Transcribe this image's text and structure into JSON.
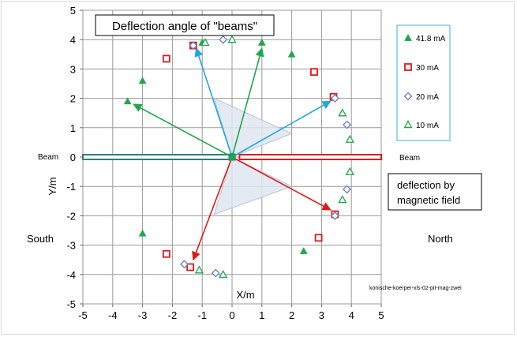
{
  "chart_data": {
    "type": "scatter",
    "title": "Deflection angle of \"beams\"",
    "xlabel": "X/m",
    "ylabel": "Y/m",
    "xlim": [
      -5,
      5
    ],
    "ylim": [
      -5,
      5
    ],
    "x_ticks": [
      -5,
      -4,
      -3,
      -2,
      -1,
      0,
      1,
      2,
      3,
      4,
      5
    ],
    "y_ticks": [
      -5,
      -4,
      -3,
      -2,
      -1,
      0,
      1,
      2,
      3,
      4,
      5
    ],
    "grid": true,
    "legend_position": "right",
    "colors": {
      "green": "#1ea84a",
      "red": "#e01a1a",
      "blue_marker": "#6b79c8",
      "cyan": "#1fa7e0",
      "beam_teal": "#2e7d7d",
      "cone_fill": "#dfe6f0",
      "plot_border": "#c8c84a",
      "legend_border": "#3ab0d6",
      "grid": "#9a9a9a"
    },
    "series": [
      {
        "name": "41.8 mA",
        "marker": "triangle-filled",
        "color": "#1ea84a",
        "points": [
          [
            -3.0,
            2.6
          ],
          [
            -3.5,
            1.9
          ],
          [
            -1.0,
            3.9
          ],
          [
            1.0,
            3.9
          ],
          [
            2.0,
            3.5
          ],
          [
            -3.0,
            -2.6
          ],
          [
            -2.2,
            -3.3
          ],
          [
            -1.1,
            -3.85
          ],
          [
            2.4,
            -3.2
          ]
        ]
      },
      {
        "name": "30 mA",
        "marker": "square-open",
        "color": "#e01a1a",
        "points": [
          [
            -2.2,
            3.35
          ],
          [
            -1.3,
            3.8
          ],
          [
            2.75,
            2.9
          ],
          [
            3.4,
            2.05
          ],
          [
            -2.2,
            -3.3
          ],
          [
            -1.4,
            -3.75
          ],
          [
            2.9,
            -2.75
          ],
          [
            3.45,
            -1.95
          ]
        ]
      },
      {
        "name": "20 mA",
        "marker": "diamond-open",
        "color": "#6b79c8",
        "points": [
          [
            -1.3,
            3.8
          ],
          [
            -0.3,
            4.0
          ],
          [
            3.45,
            2.0
          ],
          [
            3.85,
            1.1
          ],
          [
            3.85,
            -1.1
          ],
          [
            3.45,
            -2.0
          ],
          [
            -1.6,
            -3.65
          ],
          [
            -0.55,
            -3.95
          ]
        ]
      },
      {
        "name": "10 mA",
        "marker": "triangle-open",
        "color": "#1ea84a",
        "points": [
          [
            -0.9,
            3.9
          ],
          [
            0.0,
            4.0
          ],
          [
            3.7,
            1.5
          ],
          [
            3.95,
            0.6
          ],
          [
            3.95,
            -0.5
          ],
          [
            3.7,
            -1.45
          ],
          [
            -1.1,
            -3.85
          ],
          [
            -0.3,
            -4.0
          ],
          [
            0.0,
            0.0
          ]
        ]
      }
    ],
    "arrows": [
      {
        "name": "green-upper-left",
        "color": "#1ea84a",
        "x": -3.3,
        "y": 1.8
      },
      {
        "name": "green-upper-right",
        "color": "#1ea84a",
        "x": 1.0,
        "y": 3.7
      },
      {
        "name": "cyan-upper-left",
        "color": "#1fa7e0",
        "x": -1.2,
        "y": 3.7
      },
      {
        "name": "cyan-right",
        "color": "#1fa7e0",
        "x": 3.3,
        "y": 1.9
      },
      {
        "name": "red-lower-left",
        "color": "#e01a1a",
        "x": -1.3,
        "y": -3.5
      },
      {
        "name": "red-lower-right",
        "color": "#e01a1a",
        "x": 3.3,
        "y": -1.8
      }
    ],
    "cones": [
      {
        "name": "upper-cone",
        "points": [
          [
            0,
            0
          ],
          [
            -0.6,
            2.0
          ],
          [
            2.0,
            0.8
          ]
        ]
      },
      {
        "name": "lower-cone",
        "points": [
          [
            0,
            0
          ],
          [
            -0.6,
            -1.95
          ],
          [
            2.0,
            -1.0
          ]
        ]
      }
    ],
    "beams": [
      {
        "name": "left-beam",
        "color": "#2e7d7d",
        "x_from": -5.0,
        "x_to": 0.0,
        "y": 0
      },
      {
        "name": "right-beam",
        "color": "#e01a1a",
        "x_from": 0.25,
        "x_to": 5.0,
        "y": 0
      }
    ],
    "annotations": {
      "beam_left": "Beam",
      "beam_right": "Beam",
      "south": "South",
      "north": "North",
      "deflection_line1": "deflection by",
      "deflection_line2": "magnetic field",
      "credit": "konische-koerper-xls-02-pit-mag-zwei"
    }
  }
}
